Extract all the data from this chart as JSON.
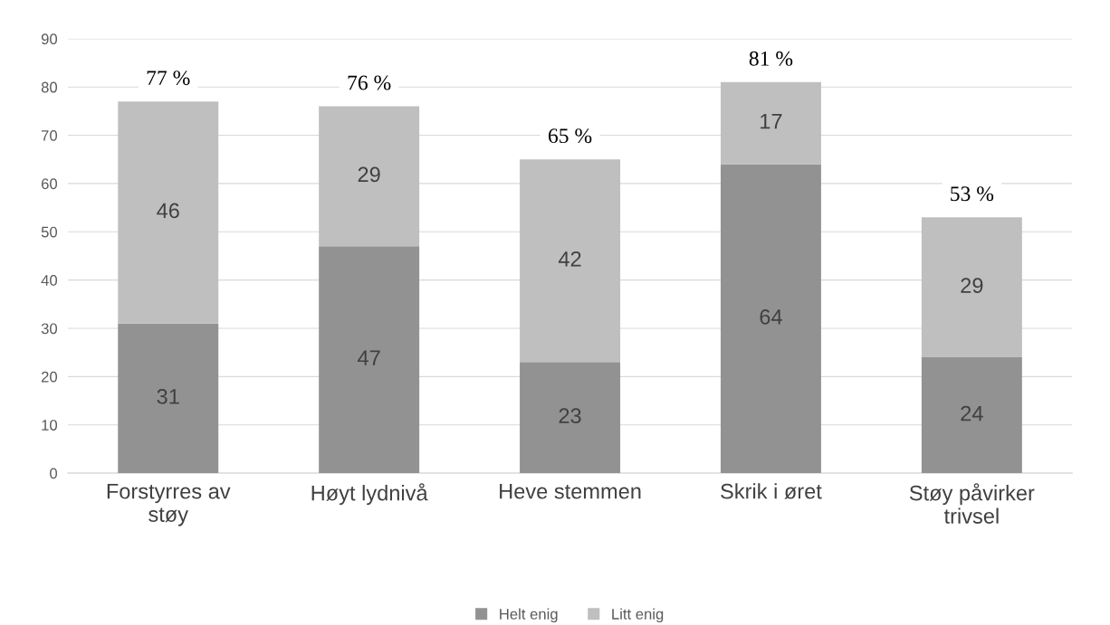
{
  "chart_data": {
    "type": "bar",
    "stacked": true,
    "categories": [
      "Forstyrres av\nstøy",
      "Høyt lydnivå",
      "Heve stemmen",
      "Skrik i øret",
      "Støy påvirker\ntrivsel"
    ],
    "series": [
      {
        "name": "Helt enig",
        "color": "#929292",
        "values": [
          31,
          47,
          23,
          64,
          24
        ]
      },
      {
        "name": "Litt enig",
        "color": "#bfbfbf",
        "values": [
          46,
          29,
          42,
          17,
          29
        ]
      }
    ],
    "totals": [
      "77 %",
      "76 %",
      "65 %",
      "81 %",
      "53 %"
    ],
    "ylim": [
      0,
      90
    ],
    "yticks": [
      0,
      10,
      20,
      30,
      40,
      50,
      60,
      70,
      80,
      90
    ],
    "grid": "y",
    "legend": "bottom",
    "data_labels": true
  }
}
